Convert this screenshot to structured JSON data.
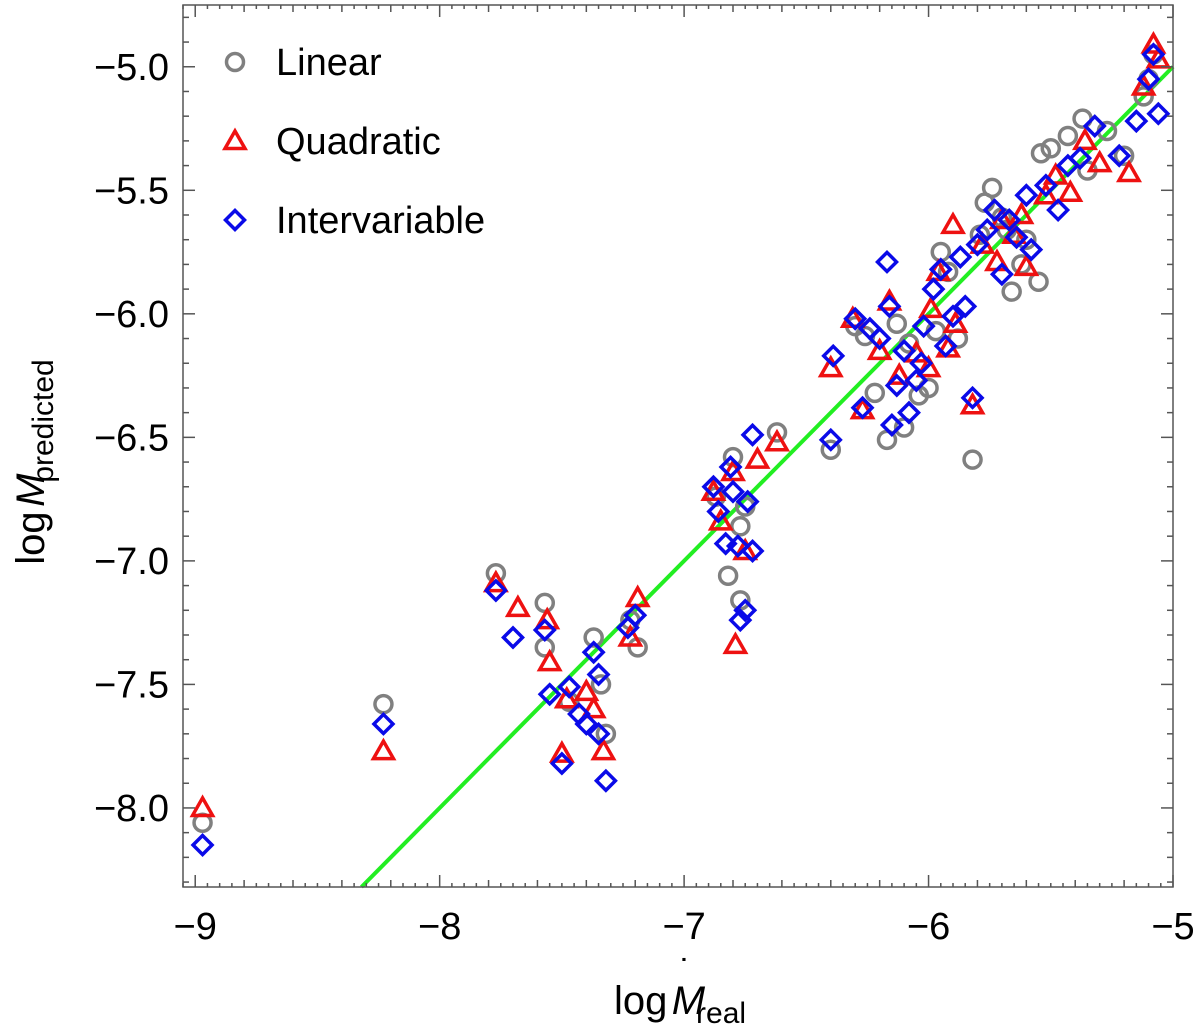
{
  "chart_data": {
    "type": "scatter",
    "xlim": [
      -9.05,
      -5.0
    ],
    "ylim": [
      -8.32,
      -4.75
    ],
    "x_ticks": [
      -9,
      -8,
      -7,
      -6,
      -5
    ],
    "x_tick_labels": [
      "−9",
      "−8",
      "−7",
      "−6",
      "−5"
    ],
    "y_ticks": [
      -8.0,
      -7.5,
      -7.0,
      -6.5,
      -6.0,
      -5.5,
      -5.0
    ],
    "y_tick_labels": [
      "−8.0",
      "−7.5",
      "−7.0",
      "−6.5",
      "−6.0",
      "−5.5",
      "−5.0"
    ],
    "xlabel": {
      "prefix": "log",
      "symbol": "M",
      "dot": "˙",
      "subscript": "real"
    },
    "ylabel": {
      "prefix": "log",
      "symbol": "M",
      "dot": "˙",
      "subscript": "predicted"
    },
    "legend_position": "top-left",
    "fit_line": {
      "name": "fit",
      "color": "#22ee22",
      "slope": 1.0,
      "intercept": 0.0
    },
    "series": [
      {
        "name": "Linear",
        "marker": "circle",
        "color": "#808080",
        "points": [
          [
            -8.97,
            -8.06
          ],
          [
            -8.23,
            -7.58
          ],
          [
            -7.77,
            -7.05
          ],
          [
            -7.57,
            -7.17
          ],
          [
            -7.57,
            -7.35
          ],
          [
            -7.47,
            -7.57
          ],
          [
            -7.37,
            -7.31
          ],
          [
            -7.34,
            -7.5
          ],
          [
            -7.32,
            -7.7
          ],
          [
            -7.22,
            -7.24
          ],
          [
            -7.19,
            -7.35
          ],
          [
            -6.87,
            -6.74
          ],
          [
            -6.82,
            -7.06
          ],
          [
            -6.8,
            -6.58
          ],
          [
            -6.77,
            -6.86
          ],
          [
            -6.77,
            -7.16
          ],
          [
            -6.75,
            -6.78
          ],
          [
            -6.62,
            -6.48
          ],
          [
            -6.4,
            -6.55
          ],
          [
            -6.3,
            -6.05
          ],
          [
            -6.22,
            -6.32
          ],
          [
            -6.17,
            -6.51
          ],
          [
            -6.13,
            -6.04
          ],
          [
            -6.1,
            -6.46
          ],
          [
            -6.04,
            -6.33
          ],
          [
            -6.0,
            -6.3
          ],
          [
            -5.97,
            -6.07
          ],
          [
            -5.95,
            -5.75
          ],
          [
            -5.88,
            -6.1
          ],
          [
            -5.82,
            -6.59
          ],
          [
            -5.79,
            -5.68
          ],
          [
            -5.77,
            -5.55
          ],
          [
            -5.74,
            -5.49
          ],
          [
            -5.7,
            -5.61
          ],
          [
            -5.66,
            -5.91
          ],
          [
            -5.62,
            -5.8
          ],
          [
            -5.55,
            -5.87
          ],
          [
            -5.54,
            -5.35
          ],
          [
            -5.5,
            -5.33
          ],
          [
            -5.43,
            -5.28
          ],
          [
            -5.37,
            -5.21
          ],
          [
            -5.35,
            -5.42
          ],
          [
            -5.27,
            -5.26
          ],
          [
            -5.2,
            -5.36
          ],
          [
            -5.12,
            -5.12
          ],
          [
            -5.1,
            -5.05
          ],
          [
            -5.08,
            -4.95
          ],
          [
            -6.26,
            -6.09
          ],
          [
            -5.92,
            -5.83
          ],
          [
            -6.08,
            -6.12
          ],
          [
            -5.68,
            -5.66
          ],
          [
            -5.6,
            -5.7
          ]
        ]
      },
      {
        "name": "Quadratic",
        "marker": "triangle",
        "color": "#ee1111",
        "points": [
          [
            -8.97,
            -8.0
          ],
          [
            -8.23,
            -7.77
          ],
          [
            -7.77,
            -7.09
          ],
          [
            -7.68,
            -7.19
          ],
          [
            -7.56,
            -7.24
          ],
          [
            -7.55,
            -7.41
          ],
          [
            -7.5,
            -7.78
          ],
          [
            -7.48,
            -7.56
          ],
          [
            -7.4,
            -7.53
          ],
          [
            -7.37,
            -7.6
          ],
          [
            -7.33,
            -7.77
          ],
          [
            -7.22,
            -7.31
          ],
          [
            -7.19,
            -7.15
          ],
          [
            -6.88,
            -6.72
          ],
          [
            -6.85,
            -6.84
          ],
          [
            -6.8,
            -6.64
          ],
          [
            -6.79,
            -7.34
          ],
          [
            -6.75,
            -6.96
          ],
          [
            -6.7,
            -6.59
          ],
          [
            -6.62,
            -6.52
          ],
          [
            -6.4,
            -6.22
          ],
          [
            -6.27,
            -6.39
          ],
          [
            -6.2,
            -6.15
          ],
          [
            -6.16,
            -5.95
          ],
          [
            -6.12,
            -6.25
          ],
          [
            -6.05,
            -6.16
          ],
          [
            -6.0,
            -6.22
          ],
          [
            -5.96,
            -5.83
          ],
          [
            -5.92,
            -6.14
          ],
          [
            -5.9,
            -5.64
          ],
          [
            -5.89,
            -6.04
          ],
          [
            -5.82,
            -6.37
          ],
          [
            -5.78,
            -5.72
          ],
          [
            -5.72,
            -5.79
          ],
          [
            -5.65,
            -5.68
          ],
          [
            -5.6,
            -5.81
          ],
          [
            -5.52,
            -5.52
          ],
          [
            -5.48,
            -5.44
          ],
          [
            -5.42,
            -5.51
          ],
          [
            -5.36,
            -5.3
          ],
          [
            -5.3,
            -5.39
          ],
          [
            -5.18,
            -5.43
          ],
          [
            -5.12,
            -5.08
          ],
          [
            -5.08,
            -4.91
          ],
          [
            -5.06,
            -4.97
          ],
          [
            -6.31,
            -6.02
          ],
          [
            -5.99,
            -5.98
          ],
          [
            -5.7,
            -5.62
          ],
          [
            -5.62,
            -5.6
          ]
        ]
      },
      {
        "name": "Intervariable",
        "marker": "diamond",
        "color": "#0a0ae8",
        "points": [
          [
            -8.97,
            -8.15
          ],
          [
            -8.23,
            -7.66
          ],
          [
            -7.77,
            -7.12
          ],
          [
            -7.7,
            -7.31
          ],
          [
            -7.57,
            -7.28
          ],
          [
            -7.55,
            -7.54
          ],
          [
            -7.5,
            -7.82
          ],
          [
            -7.47,
            -7.51
          ],
          [
            -7.43,
            -7.62
          ],
          [
            -7.4,
            -7.66
          ],
          [
            -7.37,
            -7.37
          ],
          [
            -7.35,
            -7.46
          ],
          [
            -7.35,
            -7.7
          ],
          [
            -7.32,
            -7.89
          ],
          [
            -7.23,
            -7.27
          ],
          [
            -7.2,
            -7.22
          ],
          [
            -6.88,
            -6.7
          ],
          [
            -6.86,
            -6.8
          ],
          [
            -6.83,
            -6.93
          ],
          [
            -6.81,
            -6.62
          ],
          [
            -6.8,
            -6.72
          ],
          [
            -6.78,
            -6.94
          ],
          [
            -6.77,
            -7.24
          ],
          [
            -6.75,
            -7.2
          ],
          [
            -6.74,
            -6.76
          ],
          [
            -6.72,
            -6.49
          ],
          [
            -6.72,
            -6.96
          ],
          [
            -6.4,
            -6.51
          ],
          [
            -6.39,
            -6.17
          ],
          [
            -6.3,
            -6.02
          ],
          [
            -6.27,
            -6.38
          ],
          [
            -6.2,
            -6.1
          ],
          [
            -6.16,
            -5.97
          ],
          [
            -6.15,
            -6.45
          ],
          [
            -6.13,
            -6.29
          ],
          [
            -6.1,
            -6.15
          ],
          [
            -6.08,
            -6.4
          ],
          [
            -6.05,
            -6.27
          ],
          [
            -6.02,
            -6.05
          ],
          [
            -5.98,
            -5.9
          ],
          [
            -5.95,
            -5.82
          ],
          [
            -5.93,
            -6.13
          ],
          [
            -5.9,
            -6.01
          ],
          [
            -5.85,
            -5.97
          ],
          [
            -5.82,
            -6.34
          ],
          [
            -5.8,
            -5.72
          ],
          [
            -5.76,
            -5.66
          ],
          [
            -5.73,
            -5.58
          ],
          [
            -5.7,
            -5.84
          ],
          [
            -5.64,
            -5.69
          ],
          [
            -5.58,
            -5.74
          ],
          [
            -5.52,
            -5.48
          ],
          [
            -5.47,
            -5.58
          ],
          [
            -5.43,
            -5.4
          ],
          [
            -5.38,
            -5.37
          ],
          [
            -5.32,
            -5.24
          ],
          [
            -5.22,
            -5.36
          ],
          [
            -5.15,
            -5.22
          ],
          [
            -5.1,
            -5.05
          ],
          [
            -5.08,
            -4.95
          ],
          [
            -5.06,
            -5.19
          ],
          [
            -6.17,
            -5.79
          ],
          [
            -6.24,
            -6.06
          ],
          [
            -6.03,
            -6.2
          ],
          [
            -5.87,
            -5.77
          ],
          [
            -5.67,
            -5.62
          ],
          [
            -5.6,
            -5.52
          ]
        ]
      }
    ]
  }
}
